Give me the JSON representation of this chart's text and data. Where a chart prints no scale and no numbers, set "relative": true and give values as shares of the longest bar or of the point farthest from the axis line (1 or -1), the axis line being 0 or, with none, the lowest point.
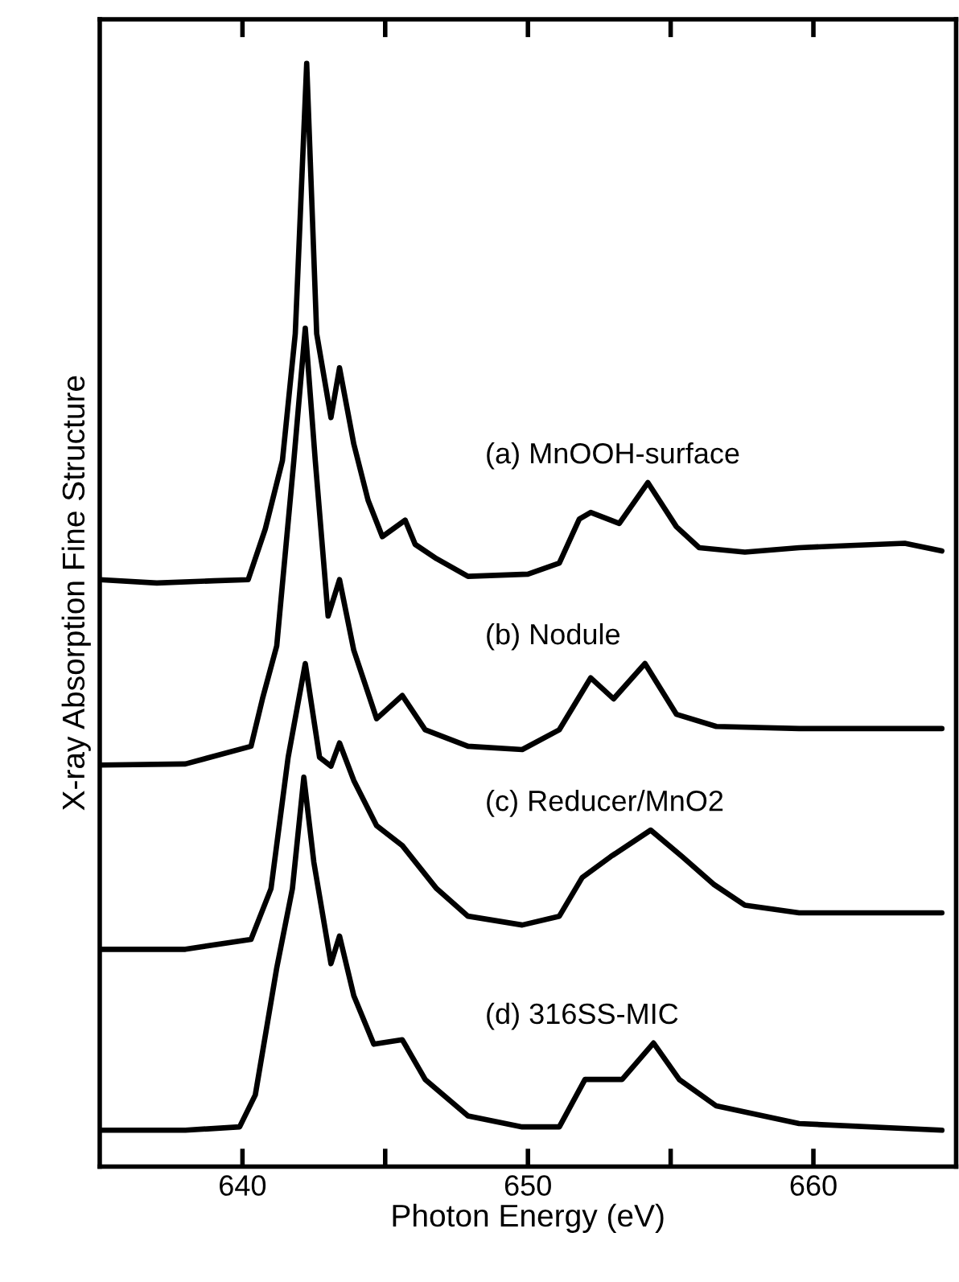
{
  "chart_data": {
    "type": "line",
    "xlabel": "Photon Energy (eV)",
    "ylabel": "X-ray Absorption Fine Structure",
    "relative": true,
    "xlim": [
      635,
      665
    ],
    "xticks": [
      640,
      {
        "value": 645,
        "label": null
      },
      650,
      {
        "value": 655,
        "label": null
      },
      660
    ],
    "grid": false,
    "legend": false,
    "marker": "none",
    "line_style": "solid",
    "series": [
      {
        "name": "(a) MnOOH-surface",
        "color": "#000000",
        "x": [
          635,
          637,
          639,
          640.2,
          640.8,
          641.4,
          641.85,
          642.25,
          642.6,
          643.1,
          643.4,
          643.9,
          644.4,
          644.9,
          645.7,
          646.05,
          646.8,
          647.9,
          650,
          651.1,
          651.8,
          652.2,
          653.2,
          654.2,
          655.2,
          656,
          657.6,
          659.5,
          661.3,
          663.2,
          664.5
        ],
        "values": [
          0.532,
          0.529,
          0.531,
          0.532,
          0.578,
          0.64,
          0.755,
          1.0,
          0.755,
          0.679,
          0.724,
          0.655,
          0.604,
          0.571,
          0.586,
          0.564,
          0.551,
          0.535,
          0.537,
          0.547,
          0.587,
          0.593,
          0.583,
          0.62,
          0.58,
          0.561,
          0.557,
          0.561,
          0.563,
          0.565,
          0.558
        ]
      },
      {
        "name": "(b) Nodule",
        "color": "#000000",
        "x": [
          635,
          638,
          640.3,
          640.7,
          641.2,
          641.8,
          642.2,
          642.55,
          643.0,
          643.4,
          643.9,
          644.7,
          645.6,
          646.4,
          647.9,
          649.8,
          651.1,
          652.2,
          653.0,
          654.1,
          655.2,
          656.6,
          659.5,
          664.5
        ],
        "values": [
          0.364,
          0.365,
          0.381,
          0.424,
          0.472,
          0.64,
          0.76,
          0.64,
          0.499,
          0.532,
          0.468,
          0.406,
          0.427,
          0.396,
          0.381,
          0.378,
          0.396,
          0.443,
          0.424,
          0.456,
          0.41,
          0.399,
          0.397,
          0.397
        ]
      },
      {
        "name": "(c) Reducer/MnO2",
        "color": "#000000",
        "x": [
          635,
          638,
          640.3,
          641.0,
          641.6,
          642.2,
          642.7,
          643.1,
          643.4,
          643.9,
          644.7,
          645.6,
          646.8,
          647.9,
          649.8,
          651.1,
          651.9,
          652.9,
          654.3,
          655.4,
          656.5,
          657.6,
          659.5,
          664.5
        ],
        "values": [
          0.197,
          0.197,
          0.206,
          0.252,
          0.371,
          0.456,
          0.371,
          0.363,
          0.384,
          0.35,
          0.309,
          0.291,
          0.252,
          0.227,
          0.219,
          0.227,
          0.262,
          0.281,
          0.305,
          0.281,
          0.256,
          0.237,
          0.23,
          0.23
        ]
      },
      {
        "name": "(d) 316SS-MIC",
        "color": "#000000",
        "x": [
          635,
          638,
          639.9,
          640.45,
          641.2,
          641.75,
          642.15,
          642.5,
          643.1,
          643.4,
          643.9,
          644.6,
          645.6,
          646.4,
          647.9,
          649.8,
          651.1,
          652.0,
          653.3,
          654.4,
          655.3,
          656.6,
          659.5,
          664.5
        ],
        "values": [
          0.033,
          0.033,
          0.036,
          0.065,
          0.18,
          0.252,
          0.353,
          0.276,
          0.184,
          0.209,
          0.155,
          0.111,
          0.115,
          0.079,
          0.046,
          0.036,
          0.036,
          0.079,
          0.079,
          0.112,
          0.079,
          0.055,
          0.039,
          0.033
        ]
      }
    ]
  }
}
